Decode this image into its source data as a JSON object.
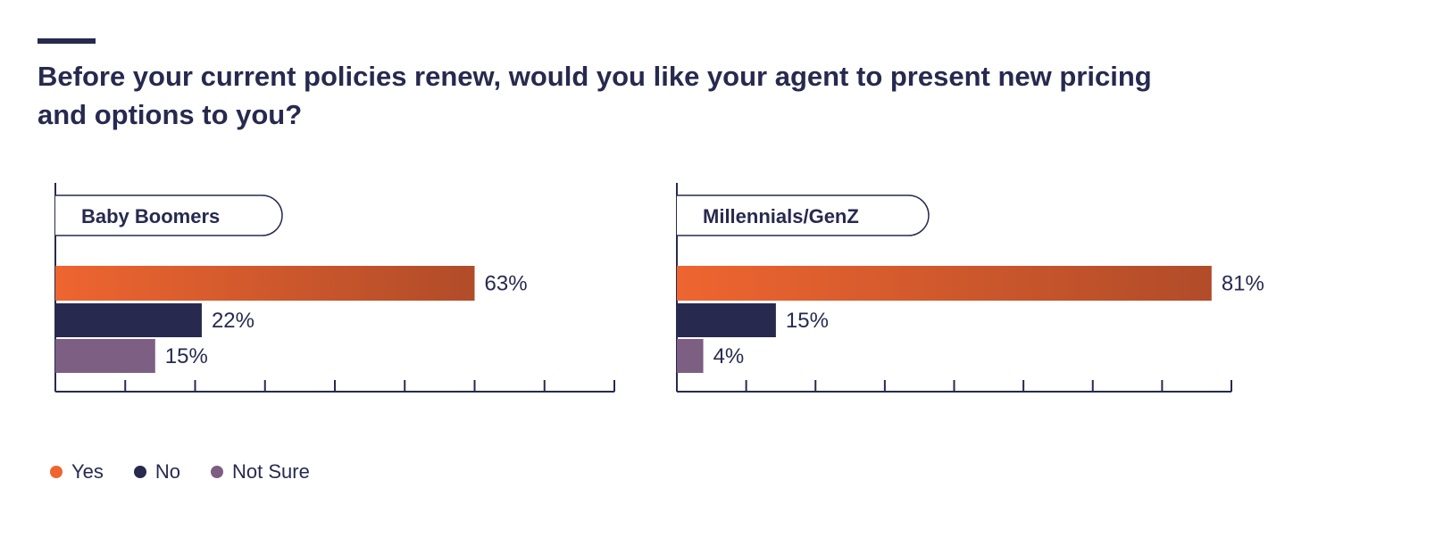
{
  "title": "Before your current policies renew, would you like your agent to present new pricing and options to you?",
  "colors": {
    "yes_start": "#ee6530",
    "yes_end": "#b14c29",
    "no": "#272a4e",
    "not_sure": "#7c5f82",
    "text": "#272a4e",
    "axis": "#272a4e"
  },
  "legend": [
    {
      "label": "Yes",
      "color": "#ee6530"
    },
    {
      "label": "No",
      "color": "#272a4e"
    },
    {
      "label": "Not Sure",
      "color": "#7c5f82"
    }
  ],
  "chart_data": [
    {
      "type": "bar",
      "orientation": "horizontal",
      "panel_label": "Baby Boomers",
      "categories": [
        "Yes",
        "No",
        "Not Sure"
      ],
      "values": [
        63,
        22,
        15
      ],
      "value_labels": [
        "63%",
        "22%",
        "15%"
      ],
      "xlim": [
        0,
        84
      ],
      "tick_count": 8,
      "grid": false,
      "legend_position": "bottom-left"
    },
    {
      "type": "bar",
      "orientation": "horizontal",
      "panel_label": "Millennials/GenZ",
      "categories": [
        "Yes",
        "No",
        "Not Sure"
      ],
      "values": [
        81,
        15,
        4
      ],
      "value_labels": [
        "81%",
        "15%",
        "4%"
      ],
      "xlim": [
        0,
        84
      ],
      "tick_count": 8,
      "grid": false,
      "legend_position": "bottom-left"
    }
  ]
}
